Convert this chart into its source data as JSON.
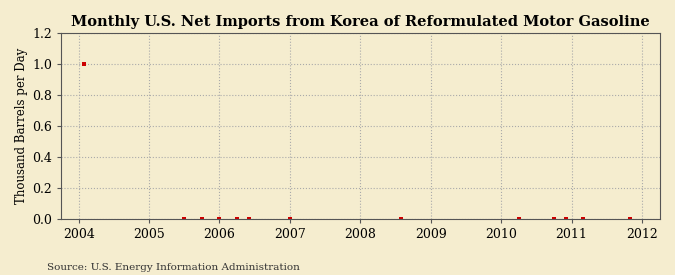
{
  "title": "Monthly U.S. Net Imports from Korea of Reformulated Motor Gasoline",
  "ylabel": "Thousand Barrels per Day",
  "source_text": "Source: U.S. Energy Information Administration",
  "background_color": "#f5edcf",
  "plot_background_color": "#f5edcf",
  "grid_color": "#aaaaaa",
  "marker_color": "#cc0000",
  "xlim": [
    2003.75,
    2012.25
  ],
  "ylim": [
    0.0,
    1.2
  ],
  "yticks": [
    0.0,
    0.2,
    0.4,
    0.6,
    0.8,
    1.0,
    1.2
  ],
  "xticks": [
    2004,
    2005,
    2006,
    2007,
    2008,
    2009,
    2010,
    2011,
    2012
  ],
  "data_points": [
    [
      2004.08,
      1.0
    ],
    [
      2005.5,
      0.0
    ],
    [
      2005.75,
      0.0
    ],
    [
      2006.0,
      0.0
    ],
    [
      2006.25,
      0.0
    ],
    [
      2006.42,
      0.0
    ],
    [
      2007.0,
      0.0
    ],
    [
      2008.58,
      0.0
    ],
    [
      2010.25,
      0.0
    ],
    [
      2010.75,
      0.0
    ],
    [
      2010.92,
      0.0
    ],
    [
      2011.17,
      0.0
    ],
    [
      2011.83,
      0.0
    ]
  ],
  "title_fontsize": 10.5,
  "label_fontsize": 8.5,
  "tick_fontsize": 9,
  "source_fontsize": 7.5
}
